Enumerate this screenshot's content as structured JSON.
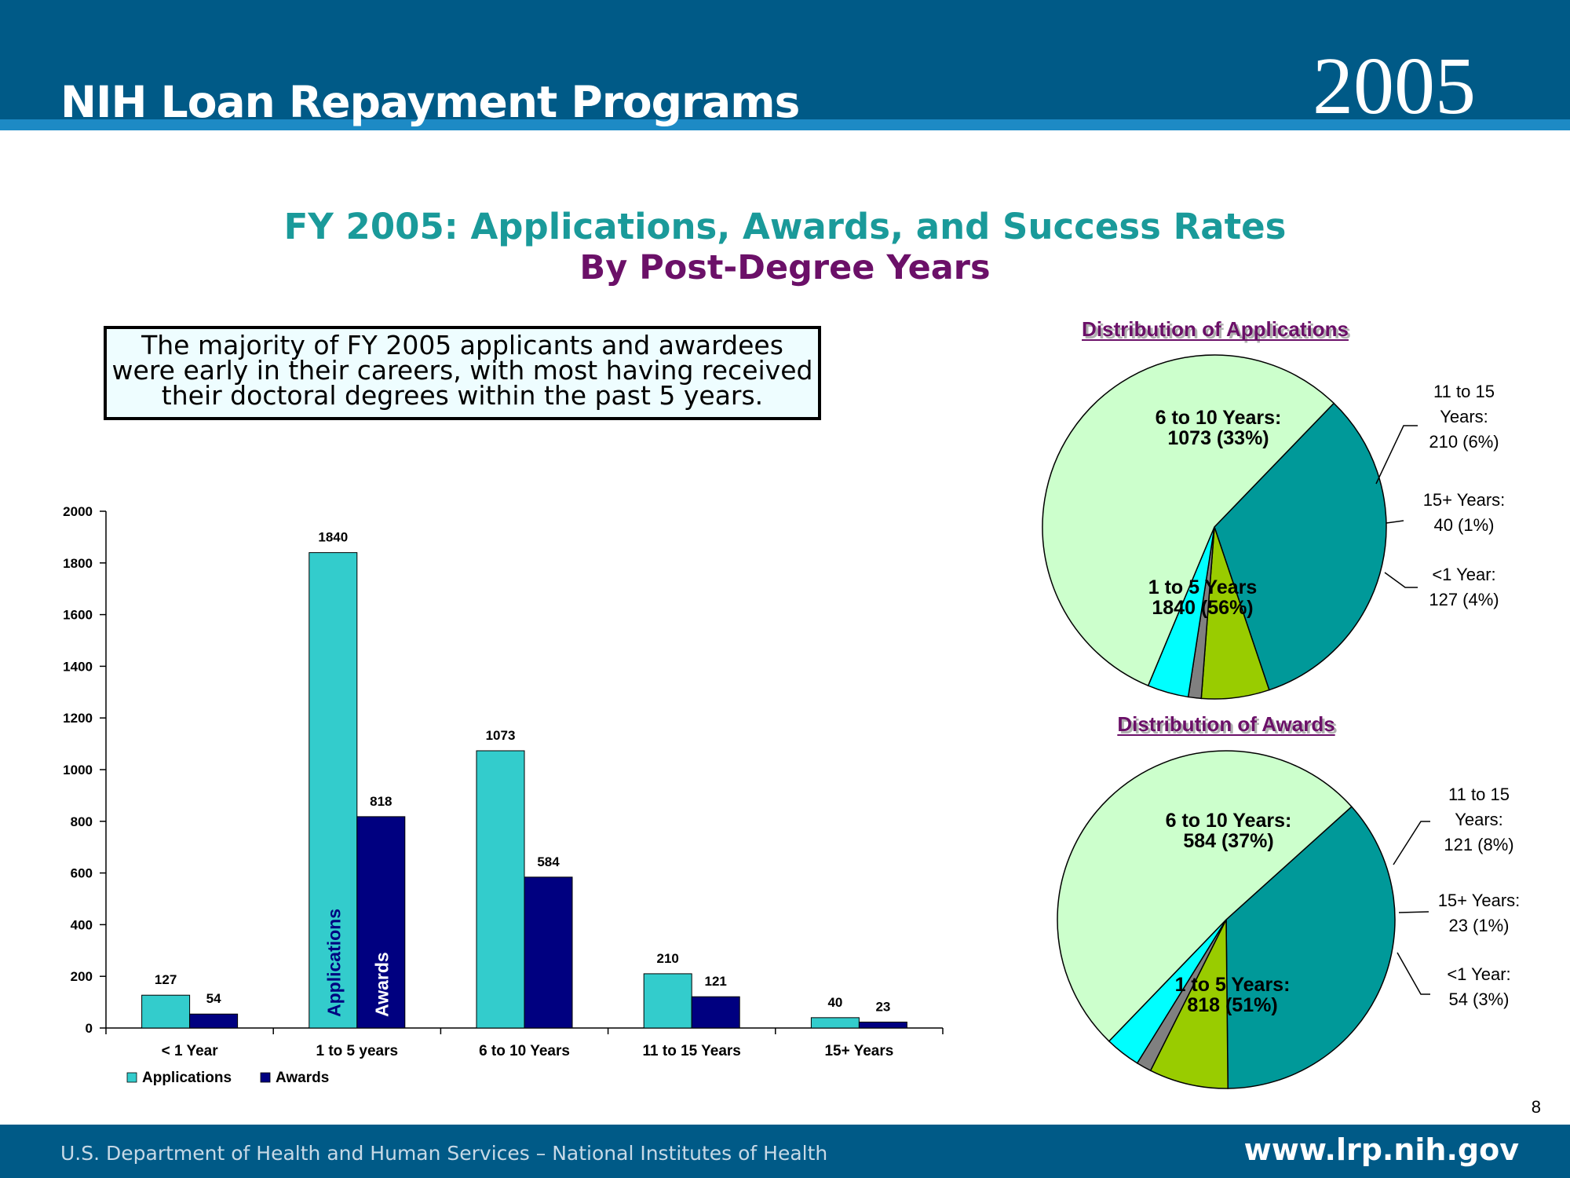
{
  "header": {
    "title": "NIH Loan Repayment Programs",
    "year": "2005"
  },
  "titles": {
    "line1": "FY 2005:  Applications, Awards, and Success Rates",
    "line2": "By Post-Degree Years"
  },
  "callout": {
    "lines": [
      "The majority of FY 2005 applicants and awardees",
      "were early in their careers, with most having received",
      "their doctoral degrees within the past 5 years."
    ]
  },
  "footer": {
    "left": "U.S. Department of Health and Human Services – National Institutes of Health",
    "right": "www.lrp.nih.gov",
    "page": "8"
  },
  "colors": {
    "header_bg": "#005a87",
    "title_teal": "#1a9a9a",
    "title_purple": "#6b1068",
    "applications": "#33cccc",
    "awards": "#000080",
    "pie_1to5": "#ccffcc",
    "pie_6to10": "#009999",
    "pie_11to15": "#99cc00",
    "pie_15plus": "#808080",
    "pie_lt1": "#00ffff"
  },
  "chart_data": [
    {
      "type": "bar",
      "categories": [
        "< 1 Year",
        "1 to 5 years",
        "6 to 10 Years",
        "11 to 15 Years",
        "15+ Years"
      ],
      "series": [
        {
          "name": "Applications",
          "values": [
            127,
            1840,
            1073,
            210,
            40
          ]
        },
        {
          "name": "Awards",
          "values": [
            54,
            818,
            584,
            121,
            23
          ]
        }
      ],
      "ylim": [
        0,
        2000
      ],
      "yticks": [
        0,
        200,
        400,
        600,
        800,
        1000,
        1200,
        1400,
        1600,
        1800,
        2000
      ],
      "in_bar_labels": [
        "Applications",
        "Awards"
      ],
      "legend": "bottom-left",
      "grid": false
    },
    {
      "type": "pie",
      "title": "Distribution of Applications",
      "slices": [
        {
          "value": 1073,
          "label": [
            "6 to 10 Years:",
            "1073 (33%)"
          ],
          "color": "#009999"
        },
        {
          "value": 210,
          "label": [
            "11 to 15",
            "Years:",
            "210 (6%)"
          ],
          "color": "#99cc00"
        },
        {
          "value": 40,
          "label": [
            "15+ Years:",
            "40 (1%)"
          ],
          "color": "#808080"
        },
        {
          "value": 127,
          "label": [
            "<1 Year:",
            "127 (4%)"
          ],
          "color": "#00ffff"
        },
        {
          "value": 1840,
          "label": [
            "1 to 5 Years",
            "1840 (56%)"
          ],
          "color": "#ccffcc"
        }
      ]
    },
    {
      "type": "pie",
      "title": "Distribution of Awards",
      "slices": [
        {
          "value": 584,
          "label": [
            "6 to 10 Years:",
            "584 (37%)"
          ],
          "color": "#009999"
        },
        {
          "value": 121,
          "label": [
            "11 to 15",
            "Years:",
            "121 (8%)"
          ],
          "color": "#99cc00"
        },
        {
          "value": 23,
          "label": [
            "15+ Years:",
            "23 (1%)"
          ],
          "color": "#808080"
        },
        {
          "value": 54,
          "label": [
            "<1 Year:",
            "54 (3%)"
          ],
          "color": "#00ffff"
        },
        {
          "value": 818,
          "label": [
            "1 to 5 Years:",
            "818 (51%)"
          ],
          "color": "#ccffcc"
        }
      ]
    }
  ]
}
